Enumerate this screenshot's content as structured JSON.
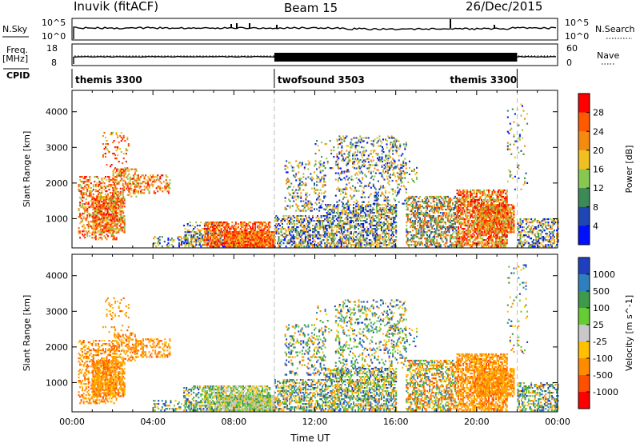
{
  "header": {
    "station": "Inuvik (fitACF)",
    "beam": "Beam 15",
    "date": "26/Dec/2015"
  },
  "top_panels": {
    "nsky_label": "N.Sky",
    "nsearch_label": "N.Search",
    "nsky_ticks": [
      "10^5",
      "10^0"
    ],
    "nsearch_ticks": [
      "10^5",
      "10^0"
    ],
    "freq_label": "Freq.",
    "freq_unit": "[MHz]",
    "freq_ticks": [
      "18",
      "8"
    ],
    "nave_label": "Nave",
    "nave_ticks": [
      "60",
      "0"
    ],
    "cpid_label": "CPID",
    "cpid_segments": [
      {
        "name": "themis 3300",
        "start": 0,
        "end": 10
      },
      {
        "name": "twofsound 3503",
        "start": 10,
        "end": 22
      },
      {
        "name": "themis 3300",
        "start": 22,
        "end": 24
      }
    ]
  },
  "chart_data": [
    {
      "type": "heatmap",
      "title": "",
      "ylabel": "Slant Range [km]",
      "xlabel": "",
      "xlim": [
        0,
        24
      ],
      "ylim": [
        180,
        4600
      ],
      "y_ticks": [
        1000,
        2000,
        3000,
        4000
      ],
      "colorbar_label": "Power [dB]",
      "colorbar_ticks": [
        "28",
        "24",
        "20",
        "16",
        "12",
        "8",
        "4"
      ],
      "colorbar_colors": [
        "#ff0000",
        "#ff5a00",
        "#f58a10",
        "#f0c020",
        "#88c850",
        "#3c8a56",
        "#1e46b4",
        "#0010ff"
      ]
    },
    {
      "type": "heatmap",
      "title": "",
      "ylabel": "Slant Range [km]",
      "xlabel": "Time UT",
      "xlim": [
        0,
        24
      ],
      "ylim": [
        180,
        4600
      ],
      "y_ticks": [
        1000,
        2000,
        3000,
        4000
      ],
      "x_tick_labels": [
        "00:00",
        "04:00",
        "08:00",
        "12:00",
        "16:00",
        "20:00",
        "00:00"
      ],
      "colorbar_label": "Velocity [m s^-1]",
      "colorbar_ticks": [
        "1000",
        "500",
        "100",
        "25",
        "-25",
        "-100",
        "-500",
        "-1000"
      ],
      "colorbar_colors": [
        "#1f3fbf",
        "#2e7fc0",
        "#3c9a4a",
        "#66cc33",
        "#c8c8c8",
        "#ffc000",
        "#ff8c00",
        "#ff5000",
        "#ff0000"
      ]
    }
  ],
  "colors": {
    "separator": "#bbbbbb"
  }
}
